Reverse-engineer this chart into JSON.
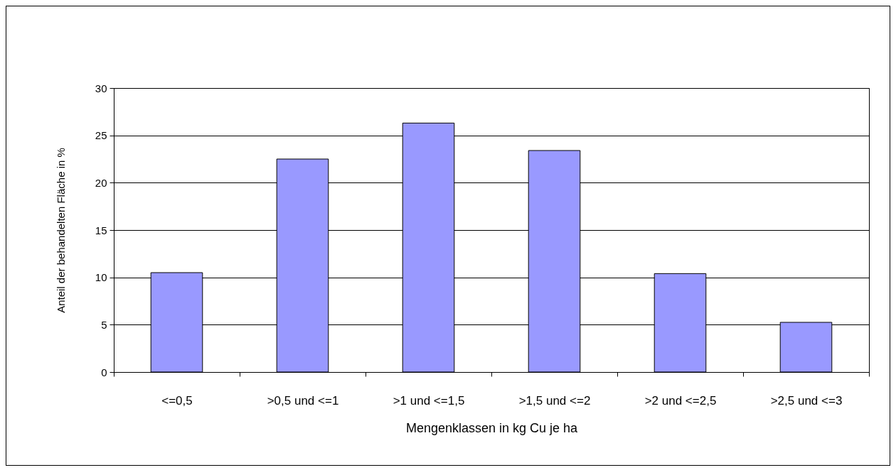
{
  "chart_data": {
    "type": "bar",
    "xlabel": "Mengenklassen in kg Cu je ha",
    "ylabel": "Anteil der behandelten  Fläche in %",
    "categories": [
      "<=0,5",
      ">0,5 und <=1",
      ">1 und <=1,5",
      ">1,5 und <=2",
      ">2 und <=2,5",
      ">2,5 und <=3"
    ],
    "values": [
      10.5,
      22.5,
      26.3,
      23.4,
      10.4,
      5.25
    ],
    "color": "#9999ff",
    "ylim": [
      0,
      30
    ],
    "yticks": [
      0,
      5,
      10,
      15,
      20,
      25,
      30
    ],
    "grid": "y"
  }
}
